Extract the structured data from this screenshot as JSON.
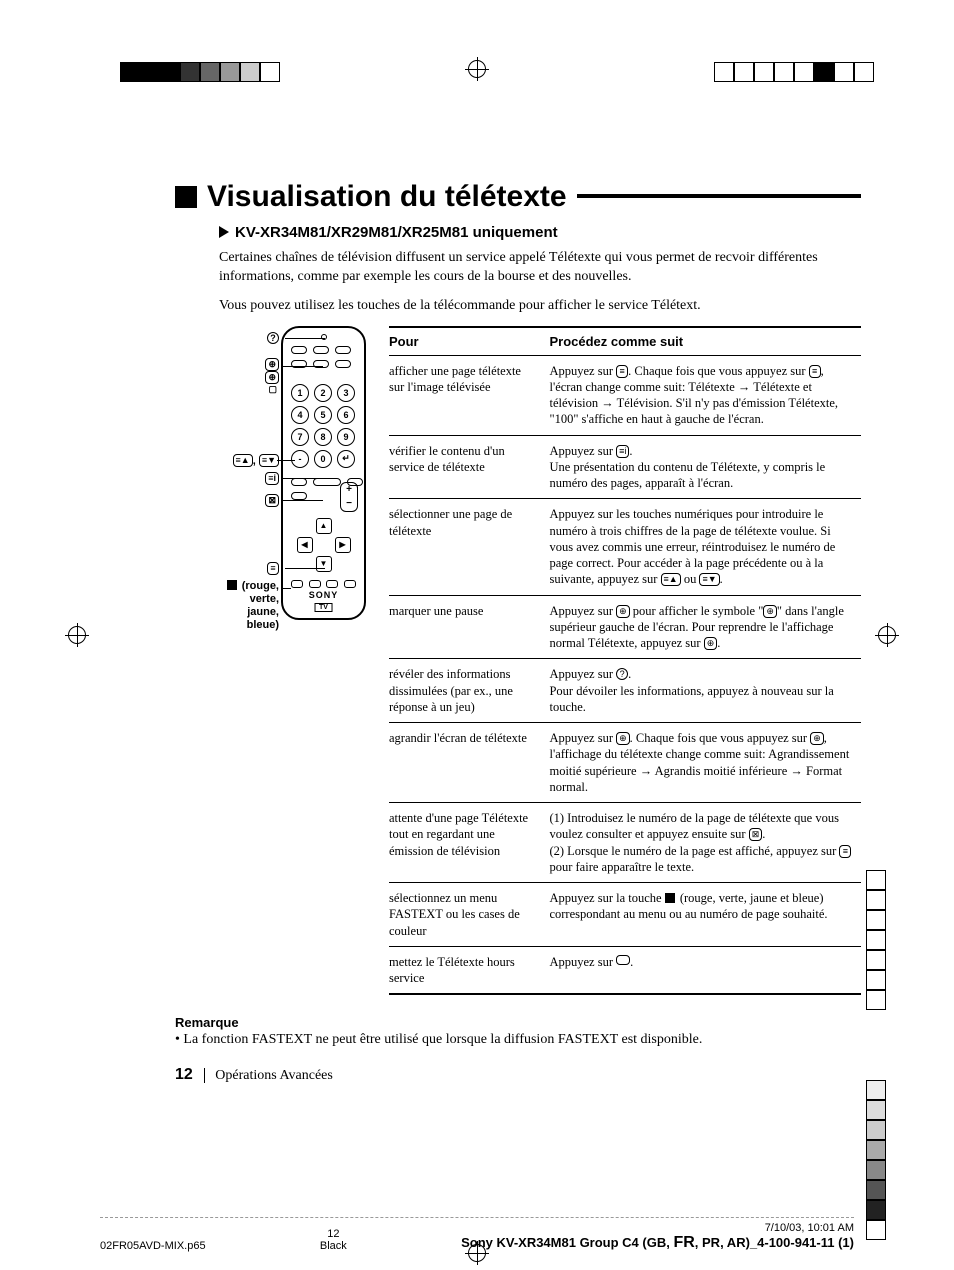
{
  "title": "Visualisation du télétexte",
  "subtitle": "KV-XR34M81/XR29M81/XR25M81 uniquement",
  "intro1": "Certaines chaînes de télévision diffusent un service appelé Télétexte qui vous permet de recvoir différentes informations, comme par exemple les cours de la bourse et des nouvelles.",
  "intro2": "Vous pouvez utilisez les touches de la télécommande pour afficher le service Télétext.",
  "remote_brand": "SONY",
  "remote_sub": "TV",
  "callouts": {
    "c1_label": "",
    "c2_label": "",
    "c3_label": "",
    "c4_label": "",
    "c5_label": "",
    "c6_label": "",
    "colors_label": " (rouge,\nverte,\njaune,\nbleue)"
  },
  "table": {
    "header_l": "Pour",
    "header_r": "Procédez comme suit",
    "rows": [
      {
        "l": "afficher une page télétexte sur l'image télévisée",
        "r_parts": [
          "Appuyez sur ",
          "≡",
          ". Chaque fois que vous appuyez sur ",
          "≡",
          ", l'écran change comme suit: Télétexte ",
          "→",
          " Télétexte et télévision ",
          "→",
          " Télévision. S'il n'y pas d'émission Télétexte, \"100\" s'affiche en haut à gauche de l'écran."
        ]
      },
      {
        "l": "vérifier le contenu d'un service de télétexte",
        "r_parts": [
          "Appuyez sur ",
          "≡i",
          ".",
          "\n",
          "Une présentation du contenu de Télétexte, y compris le numéro des pages, apparaît à l'écran."
        ]
      },
      {
        "l": "sélectionner une page de télétexte",
        "r_parts": [
          "Appuyez sur les touches numériques pour introduire le numéro à trois chiffres de la page de télétexte voulue. Si vous avez commis une erreur, réintroduisez le numéro de page correct. Pour accéder à la page précédente ou à la suivante, appuyez sur ",
          "≡▲",
          " ou ",
          "≡▼",
          "."
        ]
      },
      {
        "l": "marquer une pause",
        "r_parts": [
          "Appuyez sur ",
          "⊕",
          " pour afficher le symbole \"",
          "⊕",
          "\" dans l'angle supérieur gauche de l'écran. Pour reprendre le l'affichage normal Télétexte, appuyez sur ",
          "⊕",
          "."
        ]
      },
      {
        "l": "révéler des informations dissimulées (par ex., une réponse à un jeu)",
        "r_parts": [
          "Appuyez sur ",
          "?",
          ".",
          "\n",
          "Pour dévoiler les informations, appuyez à nouveau sur la touche."
        ]
      },
      {
        "l": "agrandir l'écran de télétexte",
        "r_parts": [
          "Appuyez sur ",
          "⊕",
          ". Chaque fois que vous appuyez sur ",
          "⊕",
          ", l'affichage du télétexte change comme suit: Agrandissement moitié supérieure ",
          "→",
          " Agrandis moitié inférieure ",
          "→",
          " Format normal."
        ]
      },
      {
        "l": "attente d'une page Télétexte tout en regardant une émission de télévision",
        "r_parts": [
          "(1) Introduisez le numéro de la page de télétexte que vous voulez consulter et appuyez ensuite sur ",
          "⊠",
          ".",
          "\n",
          "(2) Lorsque le numéro de la page est affiché, appuyez sur ",
          "≡",
          " pour faire apparaître le texte."
        ]
      },
      {
        "l": "sélectionnez un menu FASTEXT ou les cases de couleur",
        "r_parts": [
          "Appuyez sur la touche ",
          "■",
          " (rouge, verte, jaune et bleue) correspondant au menu ou au numéro de page souhaité."
        ]
      },
      {
        "l": "mettez le Télétexte hours service",
        "r_parts": [
          "Appuyez sur ",
          "○",
          "."
        ]
      }
    ]
  },
  "remark_title": "Remarque",
  "remark_body": "• La fonction FASTEXT ne peut être utilisé que lorsque la diffusion FASTEXT est disponible.",
  "page_num": "12",
  "section": "Opérations Avancées",
  "print_file": "02FR05AVD-MIX.p65",
  "print_page": "12",
  "print_date": "7/10/03, 10:01 AM",
  "print_color": "Black",
  "print_doc": "Sony KV-XR34M81 Group C4 (GB, FR, PR, AR)_4-100-941-11 (1)",
  "print_doc_pre": "Sony KV-XR34M81 Group C4 (GB, ",
  "print_doc_fr": "FR",
  "print_doc_post": ", PR, AR)_4-100-941-11 (1)"
}
